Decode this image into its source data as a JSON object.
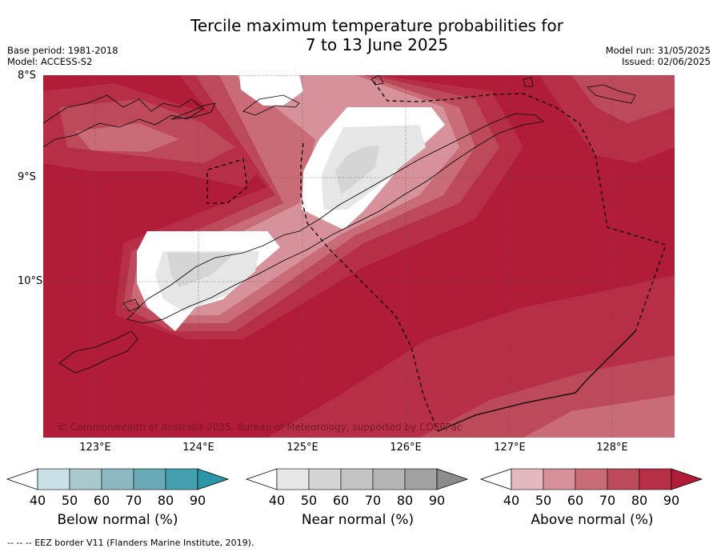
{
  "title": {
    "line1": "Tercile maximum temperature probabilities for",
    "line2": "7 to 13 June 2025"
  },
  "meta": {
    "base_period": "Base period: 1981-2018",
    "model": "Model: ACCESS-S2",
    "model_run": "Model run: 31/05/2025",
    "issued": "Issued: 02/06/2025"
  },
  "axes": {
    "latitudes": [
      "8°S",
      "9°S",
      "10°S"
    ],
    "longitudes": [
      "123°E",
      "124°E",
      "125°E",
      "126°E",
      "127°E",
      "128°E"
    ]
  },
  "copyright": "© Commonwealth of Australia 2025. Bureau of Meteorology, supported by COSPPac",
  "legends": [
    {
      "title": "Below normal (%)",
      "ticks": [
        "40",
        "50",
        "60",
        "70",
        "80",
        "90"
      ],
      "colors": [
        "#ffffff",
        "#c8e1e6",
        "#a8c8cc",
        "#8ab9c2",
        "#6aa9b6",
        "#44a0b0",
        "#2a96a8"
      ]
    },
    {
      "title": "Near normal (%)",
      "ticks": [
        "40",
        "50",
        "60",
        "70",
        "80",
        "90"
      ],
      "colors": [
        "#ffffff",
        "#e6e6e6",
        "#d5d5d5",
        "#c4c4c4",
        "#b4b4b4",
        "#a1a1a1",
        "#8c8c8c"
      ]
    },
    {
      "title": "Above normal (%)",
      "ticks": [
        "40",
        "50",
        "60",
        "70",
        "80",
        "90"
      ],
      "colors": [
        "#ffffff",
        "#e3b8bf",
        "#d7919b",
        "#c96c78",
        "#bc4a5b",
        "#b62f46",
        "#b11c39"
      ]
    }
  ],
  "footnote": "--  --  -- EEZ border V11 (Flanders Marine Institute, 2019).",
  "colors": {
    "above_90": "#b11c39",
    "above_80": "#b62f46",
    "above_70": "#bc4a5b",
    "above_60": "#c96c78",
    "above_50": "#d7919b",
    "near_50": "#e6e6e6",
    "near_60": "#d5d5d5"
  }
}
